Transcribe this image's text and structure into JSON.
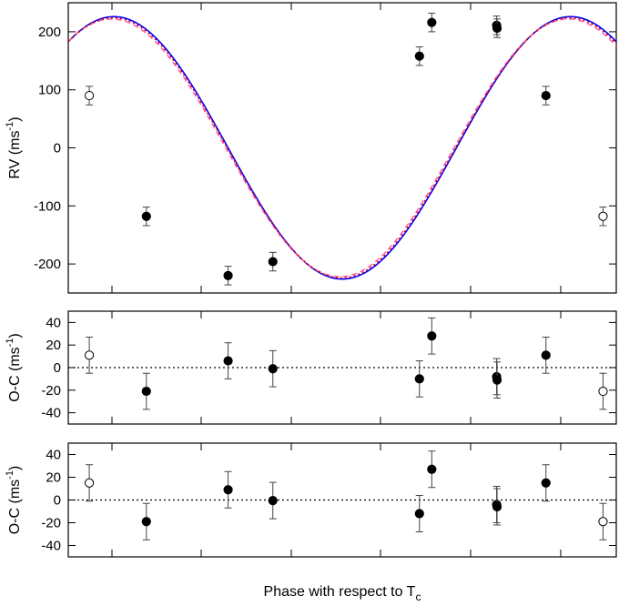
{
  "chart_data": [
    {
      "type": "line",
      "panel": "rv",
      "ylabel": "RV (ms",
      "ylabel_sup": "-1",
      "ylabel_end": ")",
      "ylim": [
        -250,
        250
      ],
      "yticks": [
        200,
        100,
        0,
        -100,
        -200
      ],
      "ytick_labels": [
        "200",
        "100",
        "0",
        "-100",
        "-200"
      ],
      "xlim": [
        -0.1,
        1.1
      ],
      "xticks": [
        0.0,
        0.2,
        0.4,
        0.6,
        0.8,
        1.0
      ],
      "series": [
        {
          "style": "solid",
          "color": "#0000ff",
          "K": 226,
          "phase_offset": 0.75
        },
        {
          "style": "dashed",
          "color": "#ff5fb0",
          "K": 222,
          "phase_offset": 0.745
        },
        {
          "style": "dotted",
          "color": "#cc0000",
          "K": 224,
          "phase_offset": 0.748
        }
      ],
      "points": [
        {
          "x": -0.054,
          "y": 90,
          "err": 16,
          "filled": false
        },
        {
          "x": 0.071,
          "y": -118,
          "err": 16,
          "filled": true
        },
        {
          "x": 0.25,
          "y": -220,
          "err": 16,
          "filled": true
        },
        {
          "x": 0.348,
          "y": -196,
          "err": 16,
          "filled": true
        },
        {
          "x": 0.669,
          "y": 158,
          "err": 16,
          "filled": true
        },
        {
          "x": 0.696,
          "y": 216,
          "err": 16,
          "filled": true
        },
        {
          "x": 0.838,
          "y": 211,
          "err": 16,
          "filled": true
        },
        {
          "x": 0.839,
          "y": 206,
          "err": 16,
          "filled": true
        },
        {
          "x": 0.946,
          "y": 90,
          "err": 16,
          "filled": true
        },
        {
          "x": 1.071,
          "y": -118,
          "err": 16,
          "filled": false
        }
      ]
    },
    {
      "type": "scatter",
      "panel": "oc1",
      "ylabel": "O-C (ms",
      "ylabel_sup": "-1",
      "ylabel_end": ")",
      "ylim": [
        -50,
        50
      ],
      "yticks": [
        40,
        20,
        0,
        -20,
        -40
      ],
      "ytick_labels": [
        "40",
        "20",
        "0",
        "-20",
        "-40"
      ],
      "xlim": [
        -0.1,
        1.1
      ],
      "points": [
        {
          "x": -0.054,
          "y": 11,
          "err": 16,
          "filled": false
        },
        {
          "x": 0.071,
          "y": -21,
          "err": 16,
          "filled": true
        },
        {
          "x": 0.25,
          "y": 6,
          "err": 16,
          "filled": true
        },
        {
          "x": 0.348,
          "y": -1,
          "err": 16,
          "filled": true
        },
        {
          "x": 0.669,
          "y": -10,
          "err": 16,
          "filled": true
        },
        {
          "x": 0.696,
          "y": 28,
          "err": 16,
          "filled": true
        },
        {
          "x": 0.838,
          "y": -8,
          "err": 16,
          "filled": true
        },
        {
          "x": 0.839,
          "y": -11,
          "err": 16,
          "filled": true
        },
        {
          "x": 0.946,
          "y": 11,
          "err": 16,
          "filled": true
        },
        {
          "x": 1.071,
          "y": -21,
          "err": 16,
          "filled": false
        }
      ]
    },
    {
      "type": "scatter",
      "panel": "oc2",
      "ylabel": "O-C (ms",
      "ylabel_sup": "-1",
      "ylabel_end": ")",
      "xlabel": "Phase with respect to T",
      "xlabel_sub": "c",
      "ylim": [
        -50,
        50
      ],
      "yticks": [
        40,
        20,
        0,
        -20,
        -40
      ],
      "ytick_labels": [
        "40",
        "20",
        "0",
        "-20",
        "-40"
      ],
      "xlim": [
        -0.1,
        1.1
      ],
      "points": [
        {
          "x": -0.054,
          "y": 15,
          "err": 16,
          "filled": false
        },
        {
          "x": 0.071,
          "y": -19,
          "err": 16,
          "filled": true
        },
        {
          "x": 0.25,
          "y": 9,
          "err": 16,
          "filled": true
        },
        {
          "x": 0.348,
          "y": -0.5,
          "err": 16,
          "filled": true
        },
        {
          "x": 0.669,
          "y": -12,
          "err": 16,
          "filled": true
        },
        {
          "x": 0.696,
          "y": 27,
          "err": 16,
          "filled": true
        },
        {
          "x": 0.838,
          "y": -4,
          "err": 16,
          "filled": true
        },
        {
          "x": 0.839,
          "y": -6,
          "err": 16,
          "filled": true
        },
        {
          "x": 0.946,
          "y": 15,
          "err": 16,
          "filled": true
        },
        {
          "x": 1.071,
          "y": -19,
          "err": 16,
          "filled": false
        }
      ]
    }
  ]
}
